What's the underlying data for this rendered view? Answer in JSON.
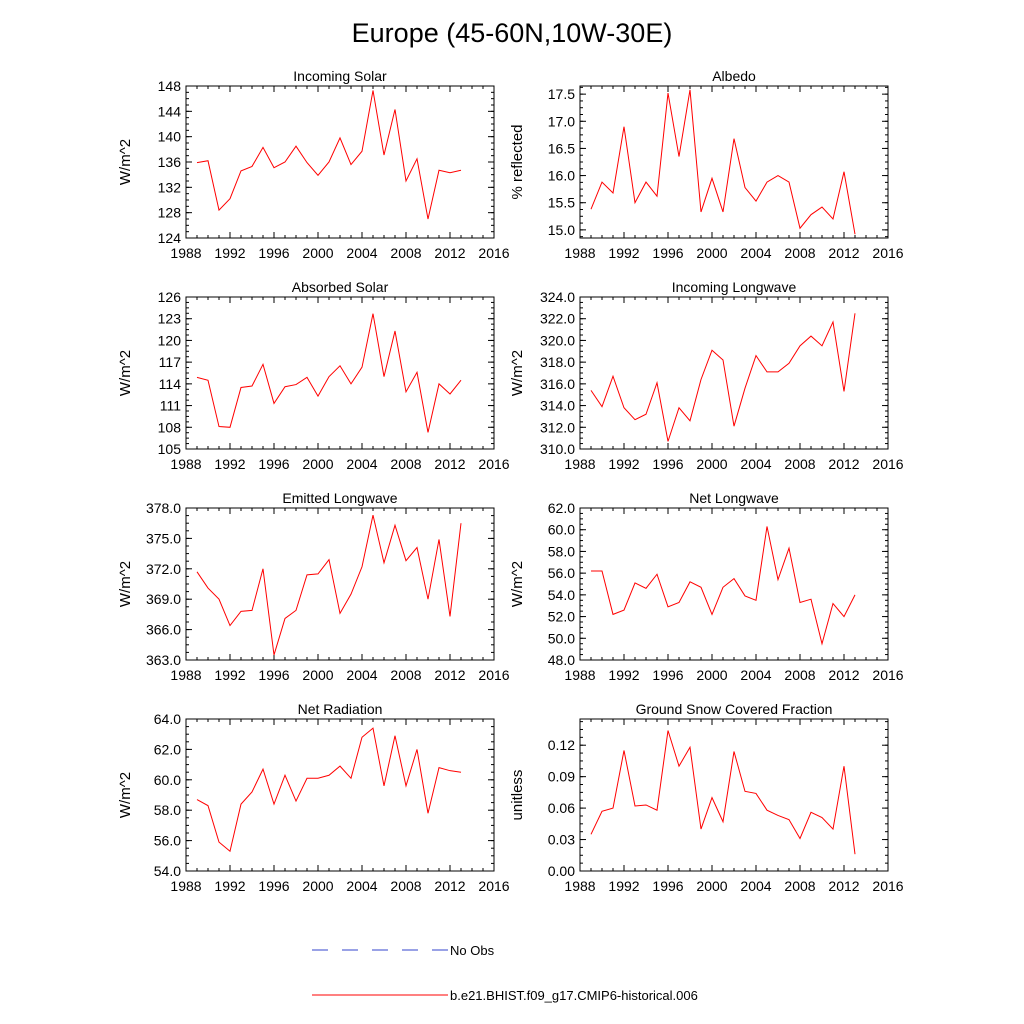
{
  "figure": {
    "title": "Europe (45-60N,10W-30E)",
    "series_color": "#ff0000",
    "obs_color": "#3344cc"
  },
  "legend": {
    "obs_label": "No Obs",
    "model_label": "b.e21.BHIST.f09_g17.CMIP6-historical.006"
  },
  "chart_data": [
    {
      "type": "line",
      "title": "Incoming Solar",
      "xlabel": "",
      "ylabel": "W/m^2",
      "xlim": [
        1988,
        2016
      ],
      "ylim": [
        124,
        148
      ],
      "xticks": [
        1988,
        1992,
        1996,
        2000,
        2004,
        2008,
        2012,
        2016
      ],
      "yticks": [
        "124",
        "128",
        "132",
        "136",
        "140",
        "144",
        "148"
      ],
      "x": [
        1989,
        1990,
        1991,
        1992,
        1993,
        1994,
        1995,
        1996,
        1997,
        1998,
        1999,
        2000,
        2001,
        2002,
        2003,
        2004,
        2005,
        2006,
        2007,
        2008,
        2009,
        2010,
        2011,
        2012,
        2013
      ],
      "series": [
        {
          "name": "b.e21.BHIST.f09_g17.CMIP6-historical.006",
          "values": [
            135.9,
            136.2,
            128.4,
            130.2,
            134.6,
            135.3,
            138.3,
            135.1,
            136.0,
            138.5,
            135.9,
            133.9,
            136.0,
            139.8,
            135.6,
            137.7,
            147.3,
            137.1,
            144.3,
            133.0,
            136.5,
            127.0,
            134.7,
            134.3,
            134.7
          ]
        }
      ]
    },
    {
      "type": "line",
      "title": "Albedo",
      "xlabel": "",
      "ylabel": "% reflected",
      "xlim": [
        1988,
        2016
      ],
      "ylim": [
        14.85,
        17.65
      ],
      "xticks": [
        1988,
        1992,
        1996,
        2000,
        2004,
        2008,
        2012,
        2016
      ],
      "yticks": [
        "15.0",
        "15.5",
        "16.0",
        "16.5",
        "17.0",
        "17.5"
      ],
      "x": [
        1989,
        1990,
        1991,
        1992,
        1993,
        1994,
        1995,
        1996,
        1997,
        1998,
        1999,
        2000,
        2001,
        2002,
        2003,
        2004,
        2005,
        2006,
        2007,
        2008,
        2009,
        2010,
        2011,
        2012,
        2013
      ],
      "series": [
        {
          "name": "b.e21.BHIST.f09_g17.CMIP6-historical.006",
          "values": [
            15.38,
            15.88,
            15.68,
            16.9,
            15.5,
            15.88,
            15.62,
            17.52,
            16.35,
            17.58,
            15.33,
            15.95,
            15.33,
            16.68,
            15.78,
            15.53,
            15.88,
            16.0,
            15.88,
            15.03,
            15.28,
            15.42,
            15.2,
            16.07,
            14.92
          ]
        }
      ]
    },
    {
      "type": "line",
      "title": "Absorbed Solar",
      "xlabel": "",
      "ylabel": "W/m^2",
      "xlim": [
        1988,
        2016
      ],
      "ylim": [
        105,
        126
      ],
      "xticks": [
        1988,
        1992,
        1996,
        2000,
        2004,
        2008,
        2012,
        2016
      ],
      "yticks": [
        "105",
        "108",
        "111",
        "114",
        "117",
        "120",
        "123",
        "126"
      ],
      "x": [
        1989,
        1990,
        1991,
        1992,
        1993,
        1994,
        1995,
        1996,
        1997,
        1998,
        1999,
        2000,
        2001,
        2002,
        2003,
        2004,
        2005,
        2006,
        2007,
        2008,
        2009,
        2010,
        2011,
        2012,
        2013
      ],
      "series": [
        {
          "name": "b.e21.BHIST.f09_g17.CMIP6-historical.006",
          "values": [
            114.9,
            114.5,
            108.1,
            108.0,
            113.5,
            113.7,
            116.7,
            111.3,
            113.6,
            113.9,
            114.9,
            112.3,
            115.0,
            116.5,
            114.0,
            116.3,
            123.7,
            115.0,
            121.3,
            112.9,
            115.6,
            107.3,
            114.0,
            112.6,
            114.5
          ]
        }
      ]
    },
    {
      "type": "line",
      "title": "Incoming Longwave",
      "xlabel": "",
      "ylabel": "W/m^2",
      "xlim": [
        1988,
        2016
      ],
      "ylim": [
        310.0,
        324.0
      ],
      "xticks": [
        1988,
        1992,
        1996,
        2000,
        2004,
        2008,
        2012,
        2016
      ],
      "yticks": [
        "310.0",
        "312.0",
        "314.0",
        "316.0",
        "318.0",
        "320.0",
        "322.0",
        "324.0"
      ],
      "x": [
        1989,
        1990,
        1991,
        1992,
        1993,
        1994,
        1995,
        1996,
        1997,
        1998,
        1999,
        2000,
        2001,
        2002,
        2003,
        2004,
        2005,
        2006,
        2007,
        2008,
        2009,
        2010,
        2011,
        2012,
        2013
      ],
      "series": [
        {
          "name": "b.e21.BHIST.f09_g17.CMIP6-historical.006",
          "values": [
            315.4,
            313.9,
            316.7,
            313.8,
            312.7,
            313.2,
            316.1,
            310.7,
            313.8,
            312.6,
            316.4,
            319.1,
            318.2,
            312.1,
            315.6,
            318.6,
            317.1,
            317.1,
            317.9,
            319.5,
            320.4,
            319.5,
            321.7,
            315.3,
            322.5
          ]
        }
      ]
    },
    {
      "type": "line",
      "title": "Emitted Longwave",
      "xlabel": "",
      "ylabel": "W/m^2",
      "xlim": [
        1988,
        2016
      ],
      "ylim": [
        363.0,
        378.0
      ],
      "xticks": [
        1988,
        1992,
        1996,
        2000,
        2004,
        2008,
        2012,
        2016
      ],
      "yticks": [
        "363.0",
        "366.0",
        "369.0",
        "372.0",
        "375.0",
        "378.0"
      ],
      "x": [
        1989,
        1990,
        1991,
        1992,
        1993,
        1994,
        1995,
        1996,
        1997,
        1998,
        1999,
        2000,
        2001,
        2002,
        2003,
        2004,
        2005,
        2006,
        2007,
        2008,
        2009,
        2010,
        2011,
        2012,
        2013
      ],
      "series": [
        {
          "name": "b.e21.BHIST.f09_g17.CMIP6-historical.006",
          "values": [
            371.7,
            370.1,
            369.0,
            366.4,
            367.8,
            367.9,
            372.0,
            363.5,
            367.1,
            367.9,
            371.4,
            371.5,
            372.9,
            367.6,
            369.5,
            372.2,
            377.3,
            372.6,
            376.3,
            372.8,
            374.1,
            369.0,
            374.9,
            367.3,
            376.5
          ]
        }
      ]
    },
    {
      "type": "line",
      "title": "Net Longwave",
      "xlabel": "",
      "ylabel": "W/m^2",
      "xlim": [
        1988,
        2016
      ],
      "ylim": [
        48.0,
        62.0
      ],
      "xticks": [
        1988,
        1992,
        1996,
        2000,
        2004,
        2008,
        2012,
        2016
      ],
      "yticks": [
        "48.0",
        "50.0",
        "52.0",
        "54.0",
        "56.0",
        "58.0",
        "60.0",
        "62.0"
      ],
      "x": [
        1989,
        1990,
        1991,
        1992,
        1993,
        1994,
        1995,
        1996,
        1997,
        1998,
        1999,
        2000,
        2001,
        2002,
        2003,
        2004,
        2005,
        2006,
        2007,
        2008,
        2009,
        2010,
        2011,
        2012,
        2013
      ],
      "series": [
        {
          "name": "b.e21.BHIST.f09_g17.CMIP6-historical.006",
          "values": [
            56.2,
            56.2,
            52.2,
            52.6,
            55.1,
            54.6,
            55.9,
            52.9,
            53.3,
            55.2,
            54.7,
            52.2,
            54.7,
            55.5,
            53.9,
            53.5,
            60.3,
            55.4,
            58.3,
            53.3,
            53.6,
            49.5,
            53.2,
            52.0,
            54.0
          ]
        }
      ]
    },
    {
      "type": "line",
      "title": "Net Radiation",
      "xlabel": "",
      "ylabel": "W/m^2",
      "xlim": [
        1988,
        2016
      ],
      "ylim": [
        54.0,
        64.0
      ],
      "xticks": [
        1988,
        1992,
        1996,
        2000,
        2004,
        2008,
        2012,
        2016
      ],
      "yticks": [
        "54.0",
        "56.0",
        "58.0",
        "60.0",
        "62.0",
        "64.0"
      ],
      "x": [
        1989,
        1990,
        1991,
        1992,
        1993,
        1994,
        1995,
        1996,
        1997,
        1998,
        1999,
        2000,
        2001,
        2002,
        2003,
        2004,
        2005,
        2006,
        2007,
        2008,
        2009,
        2010,
        2011,
        2012,
        2013
      ],
      "series": [
        {
          "name": "b.e21.BHIST.f09_g17.CMIP6-historical.006",
          "values": [
            58.7,
            58.3,
            55.9,
            55.3,
            58.4,
            59.2,
            60.7,
            58.4,
            60.3,
            58.6,
            60.1,
            60.1,
            60.3,
            60.9,
            60.1,
            62.8,
            63.4,
            59.6,
            62.9,
            59.6,
            62.0,
            57.8,
            60.8,
            60.6,
            60.5
          ]
        }
      ]
    },
    {
      "type": "line",
      "title": "Ground Snow Covered Fraction",
      "xlabel": "",
      "ylabel": "unitless",
      "xlim": [
        1988,
        2016
      ],
      "ylim": [
        0.0,
        0.145
      ],
      "xticks": [
        1988,
        1992,
        1996,
        2000,
        2004,
        2008,
        2012,
        2016
      ],
      "yticks": [
        "0.00",
        "0.03",
        "0.06",
        "0.09",
        "0.12"
      ],
      "x": [
        1989,
        1990,
        1991,
        1992,
        1993,
        1994,
        1995,
        1996,
        1997,
        1998,
        1999,
        2000,
        2001,
        2002,
        2003,
        2004,
        2005,
        2006,
        2007,
        2008,
        2009,
        2010,
        2011,
        2012,
        2013
      ],
      "series": [
        {
          "name": "b.e21.BHIST.f09_g17.CMIP6-historical.006",
          "values": [
            0.035,
            0.057,
            0.06,
            0.115,
            0.062,
            0.063,
            0.058,
            0.134,
            0.1,
            0.118,
            0.04,
            0.07,
            0.047,
            0.114,
            0.076,
            0.074,
            0.058,
            0.053,
            0.049,
            0.031,
            0.056,
            0.051,
            0.04,
            0.1,
            0.016
          ]
        }
      ]
    }
  ]
}
